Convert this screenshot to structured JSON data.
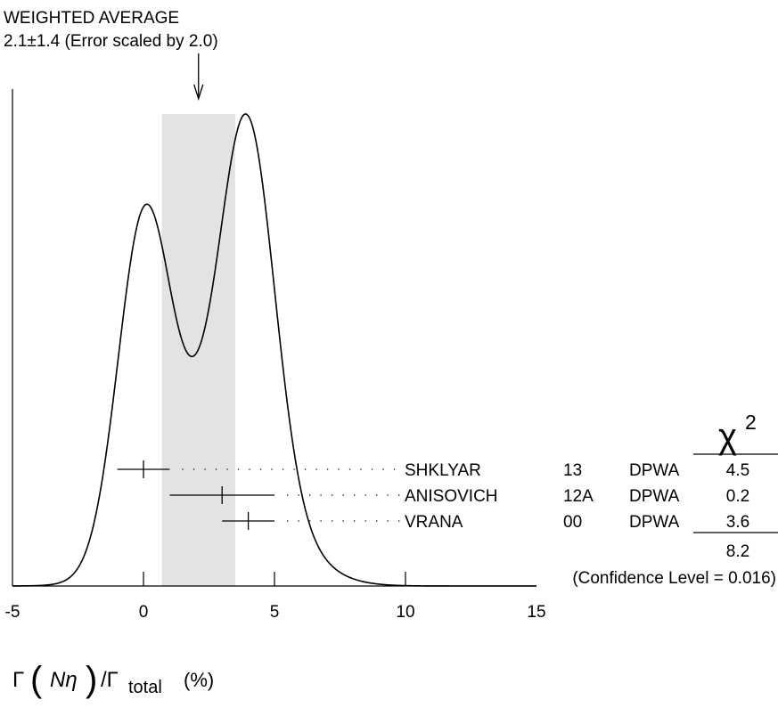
{
  "header": {
    "title": "WEIGHTED AVERAGE",
    "subtitle": "2.1±1.4 (Error scaled by 2.0)"
  },
  "chi2": {
    "symbol": "χ",
    "power": "2",
    "total": "8.2",
    "confidence": "(Confidence Level = 0.016)"
  },
  "xaxis": {
    "label_gamma": "Γ",
    "label_particles": "Nη",
    "label_slash": "/Γ",
    "label_sub": "total",
    "label_unit": "(%)"
  },
  "chart_data": {
    "type": "ideogram",
    "xlim": [
      -5,
      15
    ],
    "ticks": [
      {
        "value": -5,
        "label": "-5"
      },
      {
        "value": 0,
        "label": "0"
      },
      {
        "value": 5,
        "label": "5"
      },
      {
        "value": 10,
        "label": "10"
      },
      {
        "value": 15,
        "label": "15"
      }
    ],
    "weighted_average": {
      "value": 2.1,
      "error": 1.4,
      "scale_factor": 2.0
    },
    "band": [
      0.7,
      3.5
    ],
    "measurements": [
      {
        "name": "SHKLYAR",
        "year": "13",
        "tech": "DPWA",
        "chi2": "4.5",
        "value": 0.0,
        "low": -1.0,
        "high": 1.0
      },
      {
        "name": "ANISOVICH",
        "year": "12A",
        "tech": "DPWA",
        "chi2": "0.2",
        "value": 3.0,
        "low": 1.0,
        "high": 5.0
      },
      {
        "name": "VRANA",
        "year": "00",
        "tech": "DPWA",
        "chi2": "3.6",
        "value": 4.0,
        "low": 3.0,
        "high": 5.0
      }
    ]
  }
}
